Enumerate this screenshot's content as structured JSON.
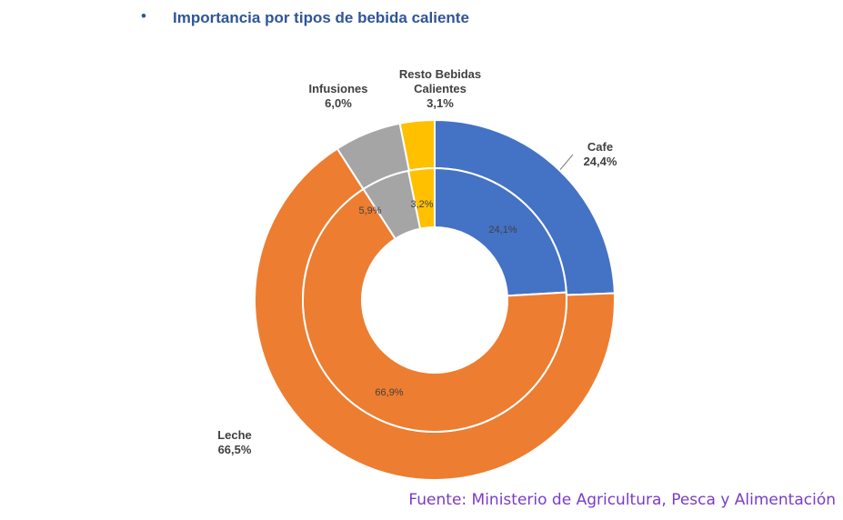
{
  "chart_data": {
    "type": "donut",
    "title": "Importancia por tipos de bebida caliente",
    "source": "Fuente: Ministerio de Agricultura, Pesca y Alimentación",
    "categories": [
      "Cafe",
      "Leche",
      "Infusiones",
      "Resto Bebidas Calientes"
    ],
    "colors": [
      "#4472c4",
      "#ed7d31",
      "#a5a5a5",
      "#ffc000"
    ],
    "rings": [
      {
        "values": [
          24.4,
          66.5,
          6.0,
          3.1
        ],
        "value_labels": [
          "24,4%",
          "66,5%",
          "6,0%",
          "3,1%"
        ]
      },
      {
        "values": [
          24.1,
          66.9,
          5.9,
          3.2
        ],
        "value_labels": [
          "24,1%",
          "66,9%",
          "5,9%",
          "3,2%"
        ]
      }
    ]
  }
}
